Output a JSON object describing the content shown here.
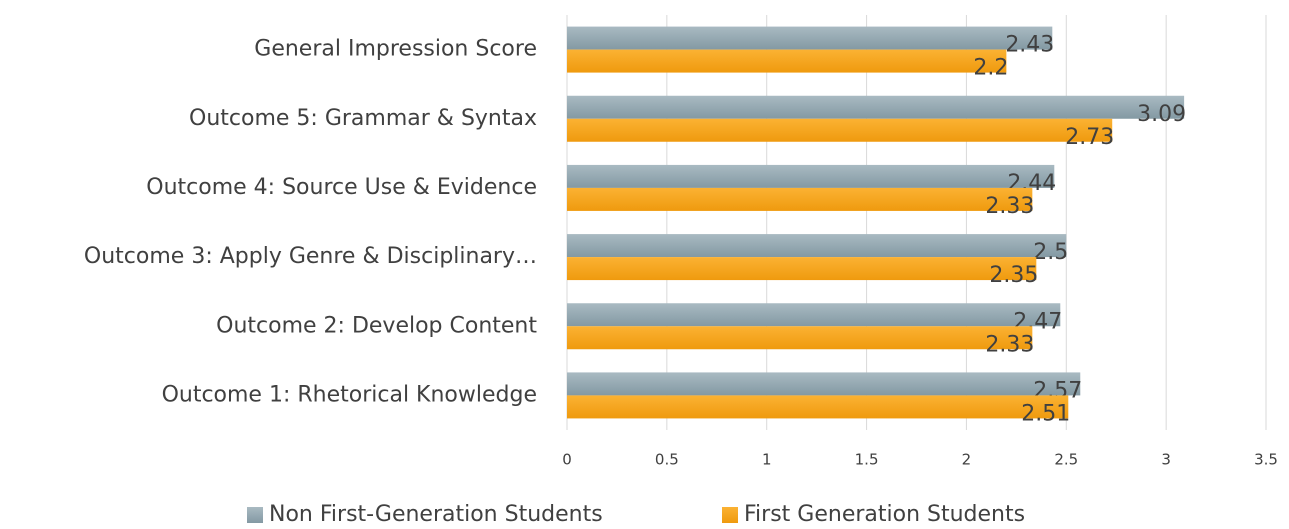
{
  "chart_data": {
    "type": "bar",
    "orientation": "horizontal",
    "categories": [
      "General Impression Score",
      "Outcome 5: Grammar & Syntax",
      "Outcome 4: Source Use & Evidence",
      "Outcome 3: Apply Genre & Disciplinary…",
      "Outcome 2: Develop Content",
      "Outcome 1: Rhetorical Knowledge"
    ],
    "series": [
      {
        "name": "Non First-Generation Students",
        "color": "#94a7b0",
        "values": [
          2.43,
          3.09,
          2.44,
          2.5,
          2.47,
          2.57
        ]
      },
      {
        "name": "First Generation Students",
        "color": "#f5a31a",
        "values": [
          2.2,
          2.73,
          2.33,
          2.35,
          2.33,
          2.51
        ]
      }
    ],
    "xlim": [
      0,
      3.5
    ],
    "xticks": [
      0,
      0.5,
      1,
      1.5,
      2,
      2.5,
      3,
      3.5
    ],
    "grid": true,
    "legend": "bottom"
  }
}
